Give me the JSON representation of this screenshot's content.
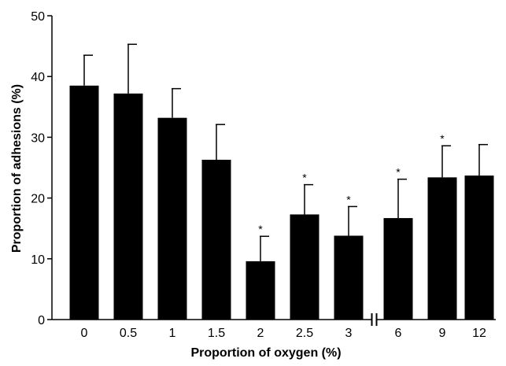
{
  "chart_data": {
    "type": "bar",
    "title": "",
    "xlabel": "Proportion of oxygen (%)",
    "ylabel": "Proportion of adhesions (%)",
    "ylim": [
      0,
      50
    ],
    "yticks": [
      0,
      10,
      20,
      30,
      40,
      50
    ],
    "categories": [
      "0",
      "0.5",
      "1",
      "1.5",
      "2",
      "2.5",
      "3",
      "6",
      "9",
      "12"
    ],
    "values": [
      38.5,
      37.2,
      33.2,
      26.3,
      9.6,
      17.3,
      13.8,
      16.7,
      23.4,
      23.7
    ],
    "error_upper": [
      43.5,
      45.3,
      38.0,
      32.1,
      13.7,
      22.2,
      18.6,
      23.1,
      28.6,
      28.8
    ],
    "significant": [
      false,
      false,
      false,
      false,
      true,
      true,
      true,
      true,
      true,
      false
    ],
    "significance_marker": "*",
    "axis_break_after_index": 6,
    "bar_color": "#000000",
    "grid": false,
    "legend": "none"
  }
}
